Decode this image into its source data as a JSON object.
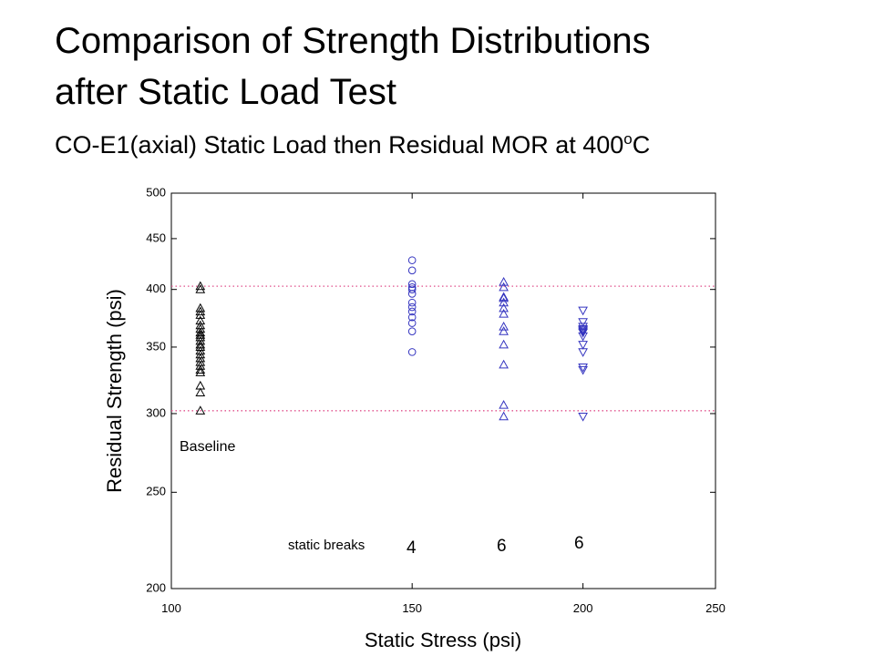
{
  "chart_data": {
    "type": "scatter",
    "title": [
      "Comparison of Strength Distributions",
      "after Static Load Test"
    ],
    "subtitle": [
      "CO-E1(axial) Static Load then Residual MOR at 400",
      "o",
      "C"
    ],
    "x_label": "Static Stress (psi)",
    "y_label": "Residual Strength (psi)",
    "xscale": "log",
    "yscale": "log",
    "xlim": [
      100,
      250
    ],
    "xticks": [
      100,
      150,
      200,
      250
    ],
    "ylim": [
      200,
      500
    ],
    "yticks": [
      200,
      250,
      300,
      350,
      400,
      450,
      500
    ],
    "hlines": [
      403,
      302
    ],
    "hline_color": "#e0508c",
    "annotations": [
      "Baseline",
      "static breaks",
      "4",
      "6",
      "6"
    ],
    "series": [
      {
        "marker": "triangle",
        "color": "#000000",
        "x": [
          105,
          105,
          105,
          105,
          105,
          105,
          105,
          105,
          105,
          105,
          105,
          105,
          105,
          105,
          105,
          105,
          105,
          105,
          105,
          105,
          105,
          105,
          105,
          105
        ],
        "values": [
          403,
          400,
          383,
          380,
          377,
          372,
          368,
          365,
          362,
          360,
          358,
          355,
          352,
          350,
          347,
          344,
          341,
          338,
          335,
          332,
          330,
          320,
          315,
          302
        ]
      },
      {
        "marker": "circle",
        "color": "#3535c0",
        "x": [
          150,
          150,
          150,
          150,
          150,
          150,
          150,
          150,
          150,
          150,
          150,
          150,
          150
        ],
        "values": [
          428,
          418,
          405,
          402,
          400,
          396,
          388,
          384,
          380,
          375,
          370,
          363,
          346
        ]
      },
      {
        "marker": "triangle",
        "color": "#3535c0",
        "x": [
          175,
          175,
          175,
          175,
          175,
          175,
          175,
          175,
          175,
          175,
          175,
          175,
          175
        ],
        "values": [
          407,
          402,
          393,
          392,
          388,
          383,
          378,
          367,
          363,
          352,
          336,
          306,
          298
        ]
      },
      {
        "marker": "triangle-down",
        "color": "#3535c0",
        "x": [
          200,
          200,
          200,
          200,
          200,
          200,
          200,
          200,
          200,
          200,
          200,
          200,
          200
        ],
        "values": [
          381,
          371,
          367,
          365,
          364,
          363,
          362,
          359,
          352,
          346,
          334,
          332,
          298
        ]
      }
    ]
  }
}
